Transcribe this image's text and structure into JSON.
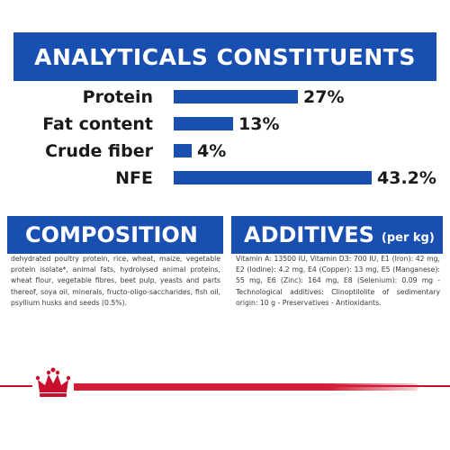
{
  "analytics": {
    "title": "ANALYTICALS CONSTITUENTS",
    "rows": [
      {
        "label": "Protein",
        "value": "27%",
        "fraction": 0.27
      },
      {
        "label": "Fat content",
        "value": "13%",
        "fraction": 0.13
      },
      {
        "label": "Crude fiber",
        "value": "4%",
        "fraction": 0.04
      },
      {
        "label": "NFE",
        "value": "43.2%",
        "fraction": 0.432
      }
    ]
  },
  "composition": {
    "title": "COMPOSITION",
    "text": "dehydrated poultry protein, rice, wheat, maize, vegetable protein isolate*, animal fats, hydrolysed animal proteins, wheat flour, vegetable fibres, beet pulp, yeasts and parts thereof, soya oil, minerals, fructo-oligo-saccharides, fish oil, psyllium husks and seeds (0.5%)."
  },
  "additives": {
    "title": "ADDITIVES",
    "unit": "(per kg)",
    "text": "Vitamin A: 13500 IU, Vitamin D3: 700 IU, E1 (Iron): 42 mg, E2 (Iodine): 4.2 mg, E4 (Copper): 13 mg, E5 (Manganese): 55 mg, E6 (Zinc): 164 mg, E8 (Selenium): 0.09 mg -Technological additives: Clinoptilolite of sedimentary origin: 10 g - Preservatives - Antioxidants."
  },
  "colors": {
    "brand_blue": "#1a4fb2",
    "brand_red": "#c8102e"
  },
  "logo": {
    "icon": "crown-icon"
  }
}
